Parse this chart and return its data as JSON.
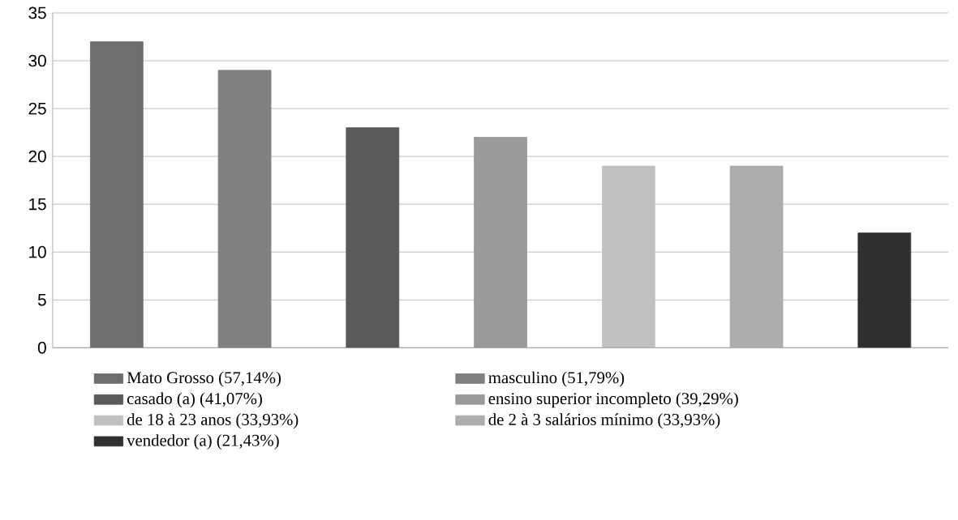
{
  "chart_data": {
    "type": "bar",
    "categories": [
      null,
      null,
      null,
      null,
      null,
      null,
      null
    ],
    "series": [
      {
        "name": "Mato Grosso (57,14%)",
        "color": "#6e6e6e",
        "values": [
          32,
          null,
          null,
          null,
          null,
          null,
          null
        ]
      },
      {
        "name": "masculino (51,79%)",
        "color": "#808080",
        "values": [
          null,
          29,
          null,
          null,
          null,
          null,
          null
        ]
      },
      {
        "name": "casado (a) (41,07%)",
        "color": "#5a5a5a",
        "values": [
          null,
          null,
          23,
          null,
          null,
          null,
          null
        ]
      },
      {
        "name": "ensino superior incompleto (39,29%)",
        "color": "#9a9a9a",
        "values": [
          null,
          null,
          null,
          22,
          null,
          null,
          null
        ]
      },
      {
        "name": "de 18 à 23 anos (33,93%)",
        "color": "#c0c0c0",
        "values": [
          null,
          null,
          null,
          null,
          19,
          null,
          null
        ]
      },
      {
        "name": "de 2 à 3 salários mínimo (33,93%)",
        "color": "#adadad",
        "values": [
          null,
          null,
          null,
          null,
          null,
          19,
          null
        ]
      },
      {
        "name": "vendedor (a) (21,43%)",
        "color": "#303030",
        "values": [
          null,
          null,
          null,
          null,
          null,
          null,
          12
        ]
      }
    ],
    "ylim": [
      0,
      35
    ],
    "yticks": [
      0,
      5,
      10,
      15,
      20,
      25,
      30,
      35
    ],
    "grid": "y",
    "legend": "bottom"
  }
}
